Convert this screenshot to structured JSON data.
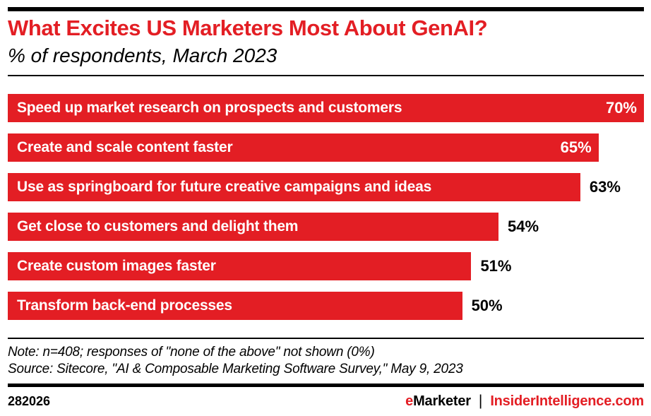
{
  "header": {
    "title": "What Excites US Marketers Most About GenAI?",
    "subtitle": "% of respondents, March 2023"
  },
  "chart_data": {
    "type": "bar",
    "orientation": "horizontal",
    "title": "What Excites US Marketers Most About GenAI?",
    "subtitle": "% of respondents, March 2023",
    "xlabel": "",
    "ylabel": "",
    "xlim": [
      0,
      70
    ],
    "grid": false,
    "legend": false,
    "bar_color": "#E31E24",
    "categories": [
      "Speed up market research on prospects and customers",
      "Create and scale content faster",
      "Use as springboard for future creative campaigns and ideas",
      "Get close to customers and delight them",
      "Create custom images faster",
      "Transform back-end processes"
    ],
    "values": [
      70,
      65,
      63,
      54,
      51,
      50
    ],
    "bars": [
      {
        "label": "Speed up market research on prospects and customers",
        "value": 70,
        "value_label": "70%",
        "value_position": "inside"
      },
      {
        "label": "Create and scale content faster",
        "value": 65,
        "value_label": "65%",
        "value_position": "inside"
      },
      {
        "label": "Use as springboard for future creative campaigns and ideas",
        "value": 63,
        "value_label": "63%",
        "value_position": "outside"
      },
      {
        "label": "Get close to customers and delight them",
        "value": 54,
        "value_label": "54%",
        "value_position": "outside"
      },
      {
        "label": "Create custom images faster",
        "value": 51,
        "value_label": "51%",
        "value_position": "outside"
      },
      {
        "label": "Transform back-end processes",
        "value": 50,
        "value_label": "50%",
        "value_position": "outside"
      }
    ]
  },
  "footnote": {
    "note": "Note: n=408; responses of \"none of the above\" not shown (0%)",
    "source": "Source: Sitecore, \"AI & Composable Marketing Software Survey,\" May 9, 2023"
  },
  "footer": {
    "chart_id": "282026",
    "brand_e": "e",
    "brand_rest": "Marketer",
    "separator": "|",
    "site": "InsiderIntelligence.com"
  },
  "colors": {
    "accent_red": "#E31E24",
    "text_black": "#000000",
    "bar_text_white": "#FFFFFF"
  }
}
